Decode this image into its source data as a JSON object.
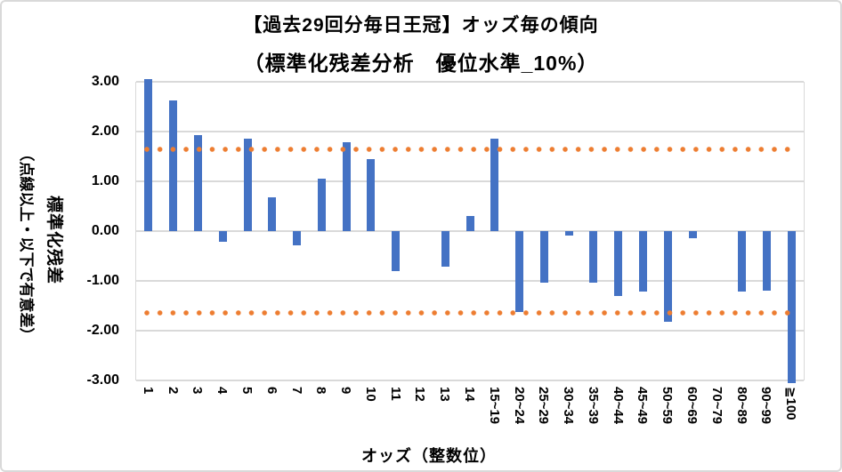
{
  "chart_data": {
    "type": "bar",
    "title": "【過去29回分毎日王冠】オッズ毎の傾向",
    "subtitle": "（標準化残差分析　優位水準_10%）",
    "xlabel": "オッズ（整数位）",
    "ylabel": "標準化残差",
    "ylabel_note": "（点線以上・以下で有意差）",
    "categories": [
      "1",
      "2",
      "3",
      "4",
      "5",
      "6",
      "7",
      "8",
      "9",
      "10",
      "11",
      "12",
      "13",
      "14",
      "15~19",
      "20~24",
      "25~29",
      "30~34",
      "35~39",
      "40~44",
      "45~49",
      "50~59",
      "60~69",
      "70~79",
      "80~89",
      "90~99",
      "≧100"
    ],
    "values": [
      3.05,
      2.63,
      1.93,
      -0.22,
      1.85,
      0.68,
      -0.28,
      1.05,
      1.78,
      1.45,
      -0.8,
      0,
      -0.72,
      0.3,
      1.85,
      -1.62,
      -1.03,
      -0.09,
      -1.03,
      -1.3,
      -1.21,
      -1.82,
      -0.14,
      0,
      -1.22,
      -1.2,
      -3.05
    ],
    "ylim": [
      -3,
      3
    ],
    "ytick_interval": 1.0,
    "y_tick_labels": [
      "3.00",
      "2.00",
      "1.00",
      "0.00",
      "-1.00",
      "-2.00",
      "-3.00"
    ],
    "grid": true,
    "legend": "none",
    "threshold_lines": {
      "values": [
        1.645,
        -1.645
      ],
      "style": "round-dot",
      "color": "#ED7D31"
    },
    "colors": {
      "bar": "#4472C4",
      "grid": "#D9D9D9",
      "text": "#000000",
      "background": "#FFFFFF",
      "frame_border": "#D9D9D9"
    }
  }
}
